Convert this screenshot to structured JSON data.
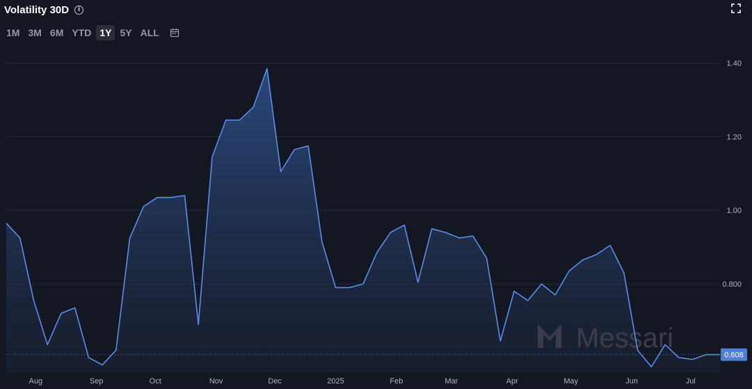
{
  "header": {
    "title": "Volatility 30D",
    "info_icon": "info-icon",
    "expand_icon": "fullscreen-icon"
  },
  "ranges": {
    "items": [
      "1M",
      "3M",
      "6M",
      "YTD",
      "1Y",
      "5Y",
      "ALL"
    ],
    "active": "1Y",
    "calendar_icon": "calendar-icon"
  },
  "watermark": {
    "text": "Messari",
    "logo": "messari-logo"
  },
  "colors": {
    "background": "#131722",
    "line": "#5b8def",
    "fill_top": "#2b4a80",
    "grid": "#2a2e39",
    "last_value_badge": "#4f7fd6"
  },
  "chart_data": {
    "type": "area",
    "title": "Volatility 30D",
    "x_tick_labels": [
      "Aug",
      "Sep",
      "Oct",
      "Nov",
      "Dec",
      "2025",
      "Feb",
      "Mar",
      "Apr",
      "May",
      "Jun",
      "Jul"
    ],
    "y_tick_labels": [
      "1.40",
      "1.20",
      "1.00",
      "0.800"
    ],
    "ylim": [
      0.56,
      1.42
    ],
    "grid": true,
    "last_value": 0.608,
    "last_value_label": "0.608",
    "series": [
      {
        "x": [
          "2024-07-17",
          "2024-07-24",
          "2024-07-31",
          "2024-08-07",
          "2024-08-14",
          "2024-08-21",
          "2024-08-28",
          "2024-09-04",
          "2024-09-11",
          "2024-09-18",
          "2024-09-25",
          "2024-10-02",
          "2024-10-09",
          "2024-10-16",
          "2024-10-23",
          "2024-10-30",
          "2024-11-06",
          "2024-11-13",
          "2024-11-20",
          "2024-11-27",
          "2024-12-04",
          "2024-12-11",
          "2024-12-18",
          "2024-12-25",
          "2025-01-01",
          "2025-01-08",
          "2025-01-15",
          "2025-01-22",
          "2025-01-29",
          "2025-02-05",
          "2025-02-12",
          "2025-02-19",
          "2025-02-26",
          "2025-03-05",
          "2025-03-12",
          "2025-03-19",
          "2025-03-26",
          "2025-04-02",
          "2025-04-09",
          "2025-04-16",
          "2025-04-23",
          "2025-04-30",
          "2025-05-07",
          "2025-05-14",
          "2025-05-21",
          "2025-05-28",
          "2025-06-04",
          "2025-06-11",
          "2025-06-18",
          "2025-06-25",
          "2025-07-02",
          "2025-07-09",
          "2025-07-16"
        ],
        "values": [
          0.965,
          0.925,
          0.755,
          0.635,
          0.72,
          0.735,
          0.6,
          0.58,
          0.62,
          0.925,
          1.01,
          1.035,
          1.035,
          1.04,
          0.69,
          1.145,
          1.245,
          1.245,
          1.28,
          1.385,
          1.105,
          1.165,
          1.175,
          0.915,
          0.79,
          0.79,
          0.8,
          0.885,
          0.94,
          0.96,
          0.805,
          0.95,
          0.94,
          0.925,
          0.93,
          0.87,
          0.645,
          0.78,
          0.755,
          0.8,
          0.77,
          0.835,
          0.865,
          0.88,
          0.905,
          0.83,
          0.62,
          0.575,
          0.635,
          0.6,
          0.595,
          0.608,
          0.608
        ]
      }
    ]
  }
}
